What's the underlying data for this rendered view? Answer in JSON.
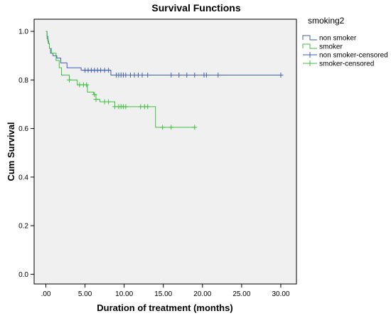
{
  "chart_data": {
    "type": "line",
    "title": "Survival Functions",
    "xlabel": "Duration of treatment (months)",
    "ylabel": "Cum Survival",
    "xlim": [
      -1.5,
      32
    ],
    "ylim": [
      -0.04,
      1.05
    ],
    "x_ticks": [
      0,
      5,
      10,
      15,
      20,
      25,
      30
    ],
    "x_tick_labels": [
      ".00",
      "5.00",
      "10.00",
      "15.00",
      "20.00",
      "25.00",
      "30.00"
    ],
    "y_ticks": [
      0.0,
      0.2,
      0.4,
      0.6,
      0.8,
      1.0
    ],
    "y_tick_labels": [
      "0.0",
      "0.2",
      "0.4",
      "0.6",
      "0.8",
      "1.0"
    ],
    "grid": false,
    "legend_placement": "right",
    "legend_title": "smoking2",
    "series": [
      {
        "name": "non smoker",
        "color": "#3f5fb8",
        "steps": [
          [
            0,
            1.0
          ],
          [
            0.15,
            0.98
          ],
          [
            0.25,
            0.96
          ],
          [
            0.35,
            0.95
          ],
          [
            0.45,
            0.93
          ],
          [
            0.6,
            0.91
          ],
          [
            0.9,
            0.9
          ],
          [
            1.4,
            0.89
          ],
          [
            1.9,
            0.87
          ],
          [
            2.7,
            0.85
          ],
          [
            4.5,
            0.84
          ],
          [
            8.3,
            0.82
          ],
          [
            30,
            0.82
          ]
        ],
        "censored": [
          5.0,
          5.4,
          5.8,
          6.2,
          6.6,
          7.0,
          7.5,
          8.0,
          9.0,
          9.3,
          9.6,
          9.9,
          10.2,
          10.8,
          11.3,
          11.8,
          12.3,
          13.0,
          16.0,
          17.0,
          18.0,
          19.0,
          20.2,
          20.5,
          22.0,
          30.0
        ]
      },
      {
        "name": "smoker",
        "color": "#3fbf3f",
        "steps": [
          [
            0,
            1.0
          ],
          [
            0.15,
            0.97
          ],
          [
            0.3,
            0.95
          ],
          [
            0.45,
            0.93
          ],
          [
            0.7,
            0.91
          ],
          [
            1.3,
            0.88
          ],
          [
            1.7,
            0.85
          ],
          [
            2.0,
            0.82
          ],
          [
            3.0,
            0.8
          ],
          [
            4.0,
            0.78
          ],
          [
            5.3,
            0.75
          ],
          [
            6.1,
            0.74
          ],
          [
            6.4,
            0.72
          ],
          [
            6.9,
            0.71
          ],
          [
            8.8,
            0.69
          ],
          [
            14.0,
            0.605
          ],
          [
            19.0,
            0.605
          ]
        ],
        "censored": [
          3.0,
          4.3,
          4.8,
          5.2,
          6.2,
          6.4,
          7.5,
          8.0,
          8.8,
          9.3,
          9.6,
          9.9,
          10.2,
          12.1,
          12.6,
          13.0,
          14.9,
          16.0,
          19.0
        ]
      },
      {
        "name": "non smoker-censored",
        "color": "#3f5fb8",
        "marker": "plus"
      },
      {
        "name": "smoker-censored",
        "color": "#3fbf3f",
        "marker": "plus"
      }
    ]
  }
}
